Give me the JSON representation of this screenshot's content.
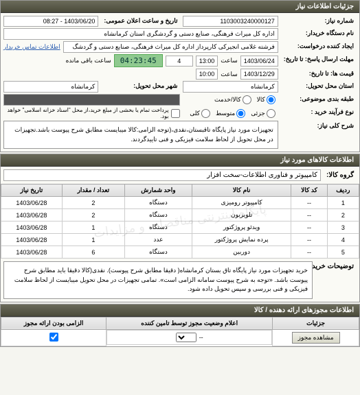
{
  "panels": {
    "info_header": "جزئیات اطلاعات نیاز",
    "goods_header": "اطلاعات کالاهای مورد نیاز",
    "license_header": "اطلاعات مجوزهای ارائه دهنده / کالا"
  },
  "fields": {
    "request_no_label": "شماره نیاز:",
    "request_no": "1103003240000127",
    "announce_label": "تاریخ و ساعت اعلان عمومی:",
    "announce_value": "1403/06/20 - 08:27",
    "buyer_org_label": "نام دستگاه خریدار:",
    "buyer_org": "اداره کل میراث فرهنگی، صنایع دستی و گردشگری استان کرمانشاه",
    "creator_label": "ایجاد کننده درخواست:",
    "creator": "فرشته غلامی انجیرکی کارپرداز اداره کل میراث فرهنگی، صنایع دستی و گردشگ",
    "contact_link": "اطلاعات تماس خریدار",
    "deadline_send_label": "مهلت ارسال پاسخ: تا تاریخ:",
    "deadline_send_date": "1403/06/24",
    "deadline_send_time_label": "ساعت",
    "deadline_send_time": "13:00",
    "remaining_days_value": "4",
    "remaining_timer": "04:23:45",
    "remaining_suffix": "ساعت باقی مانده",
    "price_valid_label": "قیمت ها: تا تاریخ:",
    "price_valid_date": "1403/12/29",
    "price_valid_time_label": "ساعت",
    "price_valid_time": "10:00",
    "delivery_province_label": "استان محل تحویل:",
    "delivery_province": "کرمانشاه",
    "delivery_city_label": "شهر محل تحویل:",
    "delivery_city": "کرمانشاه",
    "budget_label": "طبقه بندی موضوعی:",
    "budget_opts": {
      "goods": "کالا",
      "service": "کالا/خدمت"
    },
    "buy_type_label": "نوع فرآیند خرید :",
    "buy_type_opts": {
      "low": "جزئی",
      "mid": "متوسط",
      "high": "کلی"
    },
    "payment_note": "پرداخت تمام یا بخشی از مبلغ خرید،از محل \"اسناد خزانه اسلامی\" خواهد بود.",
    "desc_label": "شرح کلی نیاز:",
    "desc_text": "تجهیزات مورد نیاز پایگاه تاقبستان،نقدی،(توجه الزامی:کالا میبایست مطابق شرح پیوست باشد.تجهیزات در محل تحویل از لحاظ سلامت فیزیکی و فنی تاییدگردند.",
    "goods_group_label": "گروه کالا:",
    "goods_group": "کامپیوتر و فناوری اطلاعات-سخت افزار",
    "explain_label": "توضیحات خریدار:",
    "explain_text": "خرید تجهیزات مورد نیاز پایگاه تاق بستان کرمانشاه( دقیقا مطابق شرح پیوست). نقدی(کالا دقیقا باید مطابق شرح پیوست باشد. «توجه به شرح پیوست سامانه الزامی است». تمامی تجهیزات در محل تحویل میبایست از لحاظ سلامت فیزیکی و فنی بررسی و سپس تحویل داده شود."
  },
  "table": {
    "columns": [
      "ردیف",
      "کد کالا",
      "نام کالا",
      "واحد شمارش",
      "تعداد / مقدار",
      "تاریخ نیاز"
    ],
    "rows": [
      [
        "1",
        "--",
        "کامپیوتر رومیزی",
        "دستگاه",
        "2",
        "1403/06/28"
      ],
      [
        "2",
        "--",
        "تلویزیون",
        "دستگاه",
        "2",
        "1403/06/28"
      ],
      [
        "3",
        "--",
        "ویدئو پروژکتور",
        "دستگاه",
        "1",
        "1403/06/28"
      ],
      [
        "4",
        "--",
        "پرده نمایش پروژکتور",
        "عدد",
        "1",
        "1403/06/28"
      ],
      [
        "5",
        "--",
        "دوربین",
        "دستگاه",
        "6",
        "1403/06/28"
      ]
    ],
    "watermark": "پایگاه اینترنتی مناقصات و مزایدات"
  },
  "license_table": {
    "columns": [
      "جزئیات",
      "اعلام وضعیت مجوز توسط تامین کننده",
      "الزامی بودن ارائه مجوز"
    ],
    "view_btn": "مشاهده مجوز",
    "empty": "--",
    "checked": true
  },
  "colors": {
    "header_bg_top": "#6b6b5a",
    "header_bg_bottom": "#4a4a3a",
    "timer_bg": "#8fc98f",
    "link": "#2a5db0"
  }
}
